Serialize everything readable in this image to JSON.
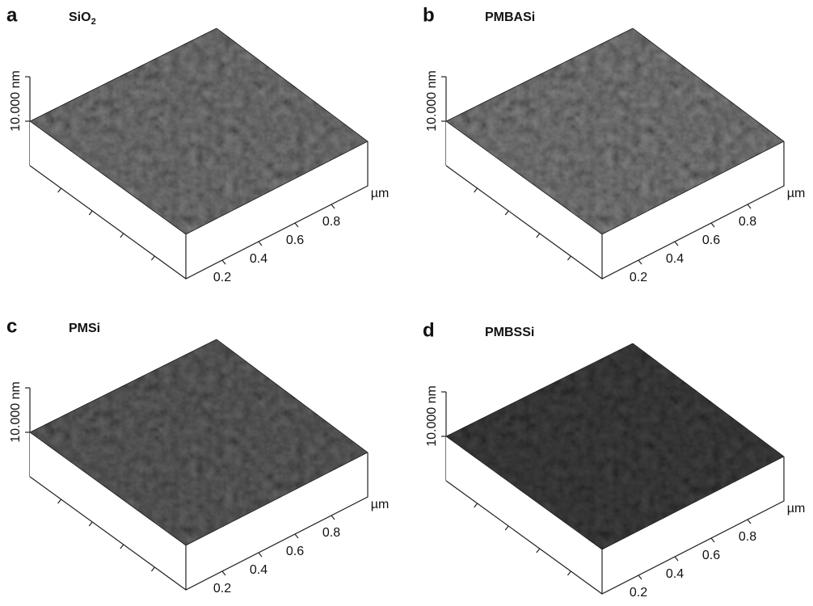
{
  "panels": [
    {
      "letter": "a",
      "title": {
        "text": "SiO",
        "subscript": "2"
      },
      "z_label": "10.000 nm",
      "x_ticks": [
        "0.2",
        "0.4",
        "0.6",
        "0.8"
      ],
      "x_unit": "µm"
    },
    {
      "letter": "b",
      "title": {
        "text": "PMBASi"
      },
      "z_label": "10.000 nm",
      "x_ticks": [
        "0.2",
        "0.4",
        "0.6",
        "0.8"
      ],
      "x_unit": "µm"
    },
    {
      "letter": "c",
      "title": {
        "text": "PMSi"
      },
      "z_label": "10.000 nm",
      "x_ticks": [
        "0.2",
        "0.4",
        "0.6",
        "0.8"
      ],
      "x_unit": "µm"
    },
    {
      "letter": "d",
      "title": {
        "text": "PMBSSi"
      },
      "z_label": "10.000 nm",
      "x_ticks": [
        "0.2",
        "0.4",
        "0.6",
        "0.8"
      ],
      "x_unit": "µm"
    }
  ]
}
